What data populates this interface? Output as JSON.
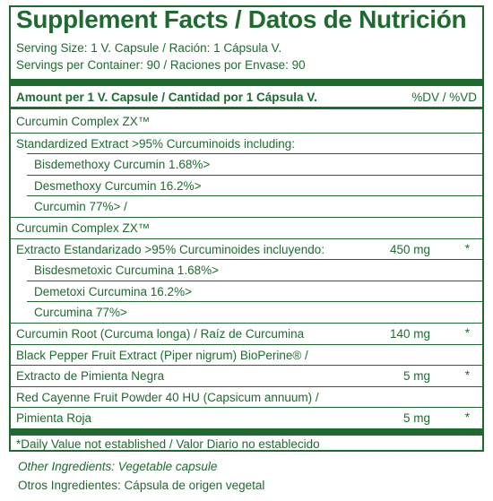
{
  "title": "Supplement Facts / Datos de Nutrición",
  "serving_size": "Serving Size: 1 V. Capsule / Ración: 1 Cápsula V.",
  "servings_per_container": "Servings per Container: 90 / Raciones por Envase: 90",
  "amount_header": "Amount per 1 V. Capsule / Cantidad por 1 Cápsula V.",
  "dv_header": "%DV / %VD",
  "rows": [
    {
      "name": "Curcumin Complex ZX™",
      "amount": "",
      "dv": "",
      "indent": false
    },
    {
      "name": "Standardized Extract >95% Curcuminoids including:",
      "amount": "",
      "dv": "",
      "indent": false
    },
    {
      "name": "Bisdemethoxy Curcumin 1.68%>",
      "amount": "",
      "dv": "",
      "indent": true
    },
    {
      "name": "Desmethoxy Curcumin 16.2%>",
      "amount": "",
      "dv": "",
      "indent": true
    },
    {
      "name": "Curcumin 77%> /",
      "amount": "",
      "dv": "",
      "indent": true
    },
    {
      "name": "Curcumin Complex ZX™",
      "amount": "",
      "dv": "",
      "indent": false
    },
    {
      "name": "Extracto Estandarizado >95% Curcuminoides incluyendo:",
      "amount": "450 mg",
      "dv": "*",
      "indent": false
    },
    {
      "name": "Bisdesmetoxic Curcumina 1.68%>",
      "amount": "",
      "dv": "",
      "indent": true
    },
    {
      "name": "Demetoxi Curcumina 16.2%>",
      "amount": "",
      "dv": "",
      "indent": true
    },
    {
      "name": "Curcumina 77%>",
      "amount": "",
      "dv": "",
      "indent": true
    },
    {
      "name": "Curcumin Root (Curcuma longa) / Raíz de Curcumina",
      "amount": "140 mg",
      "dv": "*",
      "indent": false
    },
    {
      "name": "Black Pepper Fruit Extract (Piper nigrum) BioPerine® /",
      "amount": "",
      "dv": "",
      "indent": false
    },
    {
      "name": "Extracto de Pimienta Negra",
      "amount": "5 mg",
      "dv": "*",
      "indent": false
    },
    {
      "name": "Red Cayenne Fruit Powder 40 HU (Capsicum annuum) /",
      "amount": "",
      "dv": "",
      "indent": false
    },
    {
      "name": "Pimienta Roja",
      "amount": "5 mg",
      "dv": "*",
      "indent": false
    }
  ],
  "footnote": "*Daily Value not established / Valor Diario no establecido",
  "other_ingredients_en": "Other Ingredients: Vegetable capsule",
  "other_ingredients_es": "Otros Ingredientes: Cápsula de origen vegetal",
  "colors": {
    "ink": "#1f6b2f",
    "background": "#ffffff"
  }
}
